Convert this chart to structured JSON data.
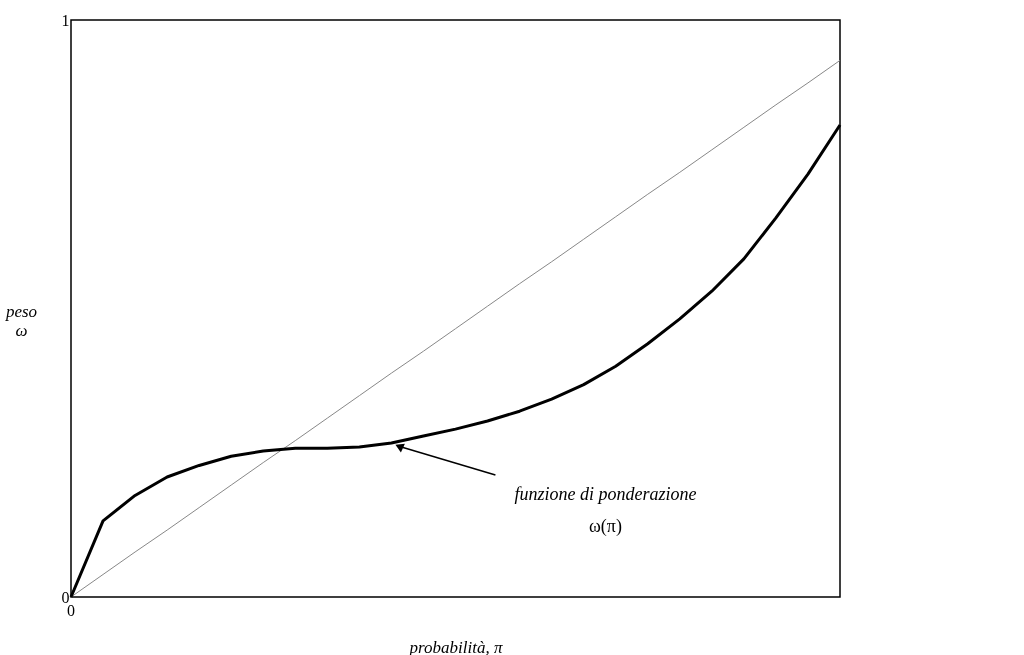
{
  "chart_data": {
    "type": "line",
    "xlabel": "probabilità, π",
    "ylabel": "peso\nω",
    "categories": [
      null,
      null,
      null,
      null,
      null,
      null,
      null,
      null,
      null,
      null,
      null,
      null,
      null,
      null,
      null,
      null,
      null,
      null,
      null,
      null,
      null,
      null,
      null,
      null,
      null
    ],
    "ylim": [
      0,
      1
    ],
    "yticks": [
      0,
      1
    ],
    "series": [
      {
        "color": "#888888",
        "values": [
          0,
          0.039,
          0.078,
          0.116,
          0.155,
          0.194,
          0.233,
          0.271,
          0.31,
          0.349,
          0.388,
          0.426,
          0.465,
          0.504,
          0.543,
          0.581,
          0.62,
          0.659,
          0.698,
          0.736,
          0.775,
          0.814,
          0.853,
          0.891,
          0.93
        ]
      },
      {
        "color": "#000000",
        "values": [
          0,
          0.132,
          0.176,
          0.208,
          0.228,
          0.244,
          0.253,
          0.258,
          0.258,
          0.26,
          0.267,
          0.279,
          0.291,
          0.305,
          0.322,
          0.343,
          0.368,
          0.4,
          0.439,
          0.482,
          0.53,
          0.586,
          0.657,
          0.733,
          0.818
        ]
      }
    ],
    "annotations": [
      "funzione di ponderazione\nω(π)",
      "0"
    ],
    "grid": false,
    "marker": "none",
    "line_style": "solid"
  }
}
